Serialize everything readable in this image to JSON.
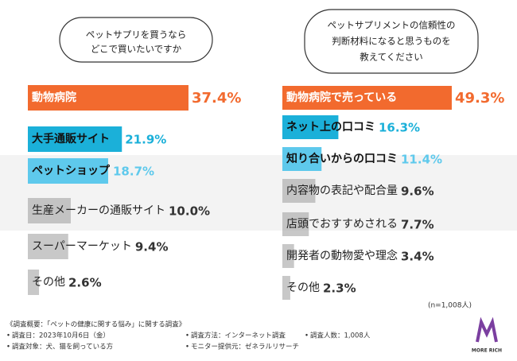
{
  "chart_data": [
    {
      "type": "bar",
      "title": [
        "ペットサプリを買うなら",
        "どこで買いたいですか"
      ],
      "categories": [
        "動物病院",
        "大手通販サイト",
        "ペットショップ",
        "生産メーカーの通販サイト",
        "スーパーマーケット",
        "その他"
      ],
      "values": [
        37.4,
        21.9,
        18.7,
        10.0,
        9.4,
        2.6
      ],
      "value_labels": [
        "37.4%",
        "21.9%",
        "18.7%",
        "10.0%",
        "9.4%",
        "2.6%"
      ],
      "colors": [
        "#f26a2e",
        "#1bb0d9",
        "#5ec9ec",
        "#9b9b9b",
        "#9b9b9b",
        "#9b9b9b"
      ]
    },
    {
      "type": "bar",
      "title": [
        "ペットサプリメントの信頼性の",
        "判断材料になると思うものを",
        "教えてください"
      ],
      "categories": [
        "動物病院で売っている",
        "ネット上の口コミ",
        "知り合いからの口コミ",
        "内容物の表記や配合量",
        "店頭でおすすめされる",
        "開発者の動物愛や理念",
        "その他"
      ],
      "values": [
        49.3,
        16.3,
        11.4,
        9.6,
        7.7,
        3.4,
        2.3
      ],
      "value_labels": [
        "49.3%",
        "16.3%",
        "11.4%",
        "9.6%",
        "7.7%",
        "3.4%",
        "2.3%"
      ],
      "colors": [
        "#f26a2e",
        "#1bb0d9",
        "#5ec9ec",
        "#9b9b9b",
        "#9b9b9b",
        "#9b9b9b",
        "#9b9b9b"
      ],
      "note": "(n=1,008人)"
    }
  ],
  "footer": {
    "heading": "《調査概要：「ペットの健康に関する悩み」に関する調査》",
    "items": [
      "調査日：2023年10月6日（金）",
      "調査方法：インターネット調査",
      "調査人数：1,008人",
      "調査対象：犬、猫を飼っている方",
      "モニター提供元：ゼネラルリサーチ"
    ],
    "logo": "MORE RICH"
  }
}
